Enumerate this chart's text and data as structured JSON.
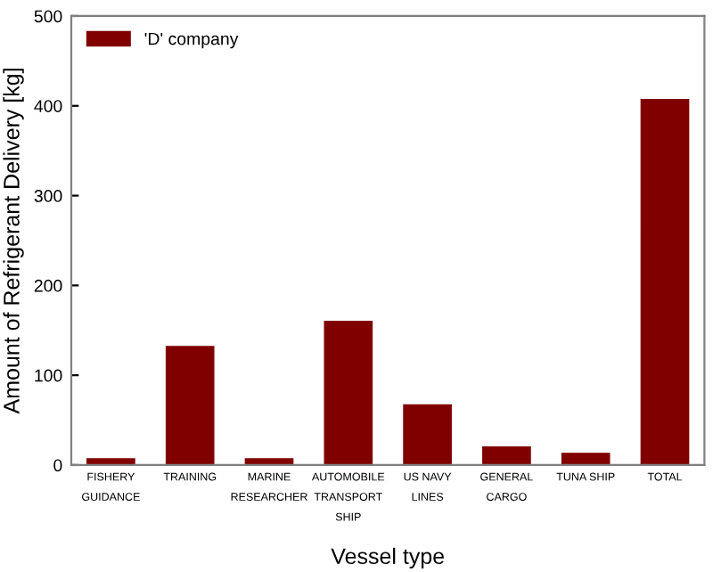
{
  "chart_data": {
    "type": "bar",
    "xlabel": "Vessel type",
    "ylabel": "Amount of Refrigerant Delivery [kg]",
    "categories": [
      "FISHERY\nGUIDANCE",
      "TRAINING",
      "MARINE\nRESEARCHER",
      "AUTOMOBILE\nTRANSPORT\nSHIP",
      "US NAVY\nLINES",
      "GENERAL\nCARGO",
      "TUNA SHIP",
      "TOTAL"
    ],
    "series": [
      {
        "name": "'D' company",
        "color": "#800000",
        "values": [
          7,
          132,
          7,
          160,
          67,
          20,
          13,
          407
        ]
      }
    ],
    "ylim": [
      0,
      500
    ],
    "yticks": [
      0,
      100,
      200,
      300,
      400,
      500
    ],
    "grid": false,
    "legend": "top left"
  }
}
